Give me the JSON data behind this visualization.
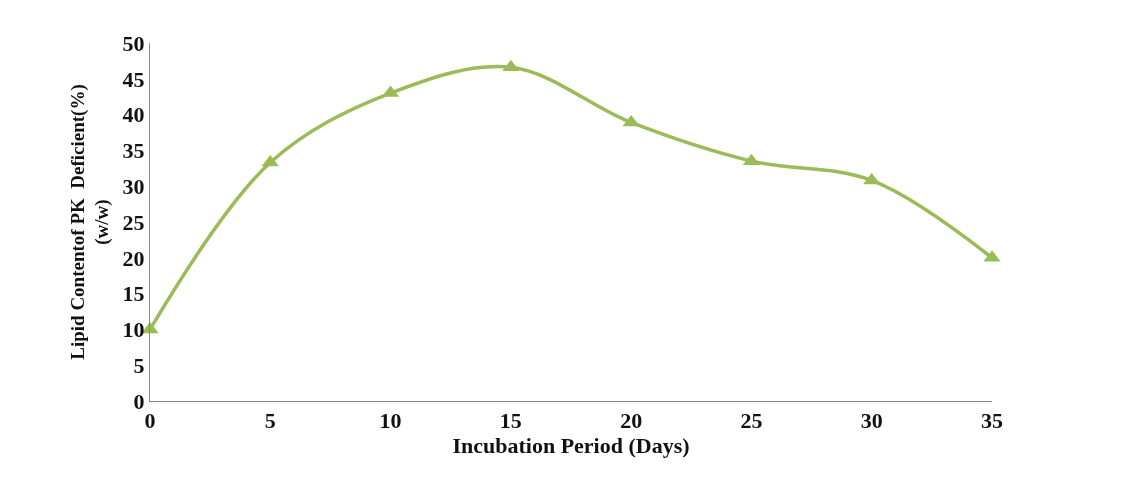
{
  "chart_data": {
    "type": "line",
    "xlabel": "Incubation Period (Days)",
    "ylabel": "Lipid Contentof PK  Deficient(%)\n(w/w)",
    "x": [
      0,
      5,
      10,
      15,
      20,
      25,
      30,
      35
    ],
    "series": [
      {
        "color": "#9bbb59",
        "values": [
          10,
          33.3,
          43,
          46.6,
          38.9,
          33.5,
          30.8,
          20
        ]
      }
    ],
    "xlim": [
      0,
      35
    ],
    "xticks": [
      0,
      5,
      10,
      15,
      20,
      25,
      30,
      35
    ],
    "ylim": [
      0,
      50
    ],
    "yticks": [
      0,
      5,
      10,
      15,
      20,
      25,
      30,
      35,
      40,
      45,
      50
    ],
    "marker": "triangle",
    "line_style": "solid"
  }
}
